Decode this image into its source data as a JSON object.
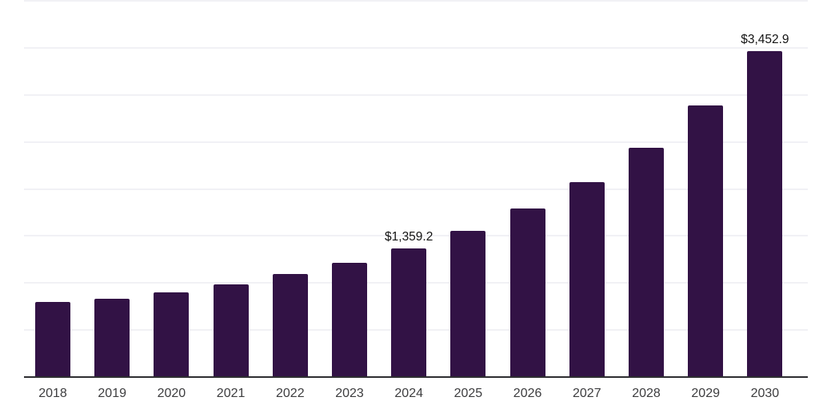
{
  "chart_data": {
    "type": "bar",
    "title": "",
    "xlabel": "",
    "ylabel": "",
    "categories": [
      "2018",
      "2019",
      "2020",
      "2021",
      "2022",
      "2023",
      "2024",
      "2025",
      "2026",
      "2027",
      "2028",
      "2029",
      "2030"
    ],
    "values": [
      788,
      822,
      890,
      975,
      1085,
      1203,
      1359.2,
      1542,
      1780,
      2068,
      2432,
      2882,
      3452.9
    ],
    "data_labels": {
      "2024": "$1,359.2",
      "2030": "$3,452.9"
    },
    "ylim": [
      0,
      4000
    ],
    "gridline_step": 500,
    "grid": true,
    "legend": false,
    "y_tick_labels_visible": false,
    "bar_color": "#321245",
    "gridline_color": "#f1f1f5",
    "axis_line_color": "#2e2e31",
    "x_label_color": "#3d3d3f",
    "data_label_color": "#141414"
  }
}
